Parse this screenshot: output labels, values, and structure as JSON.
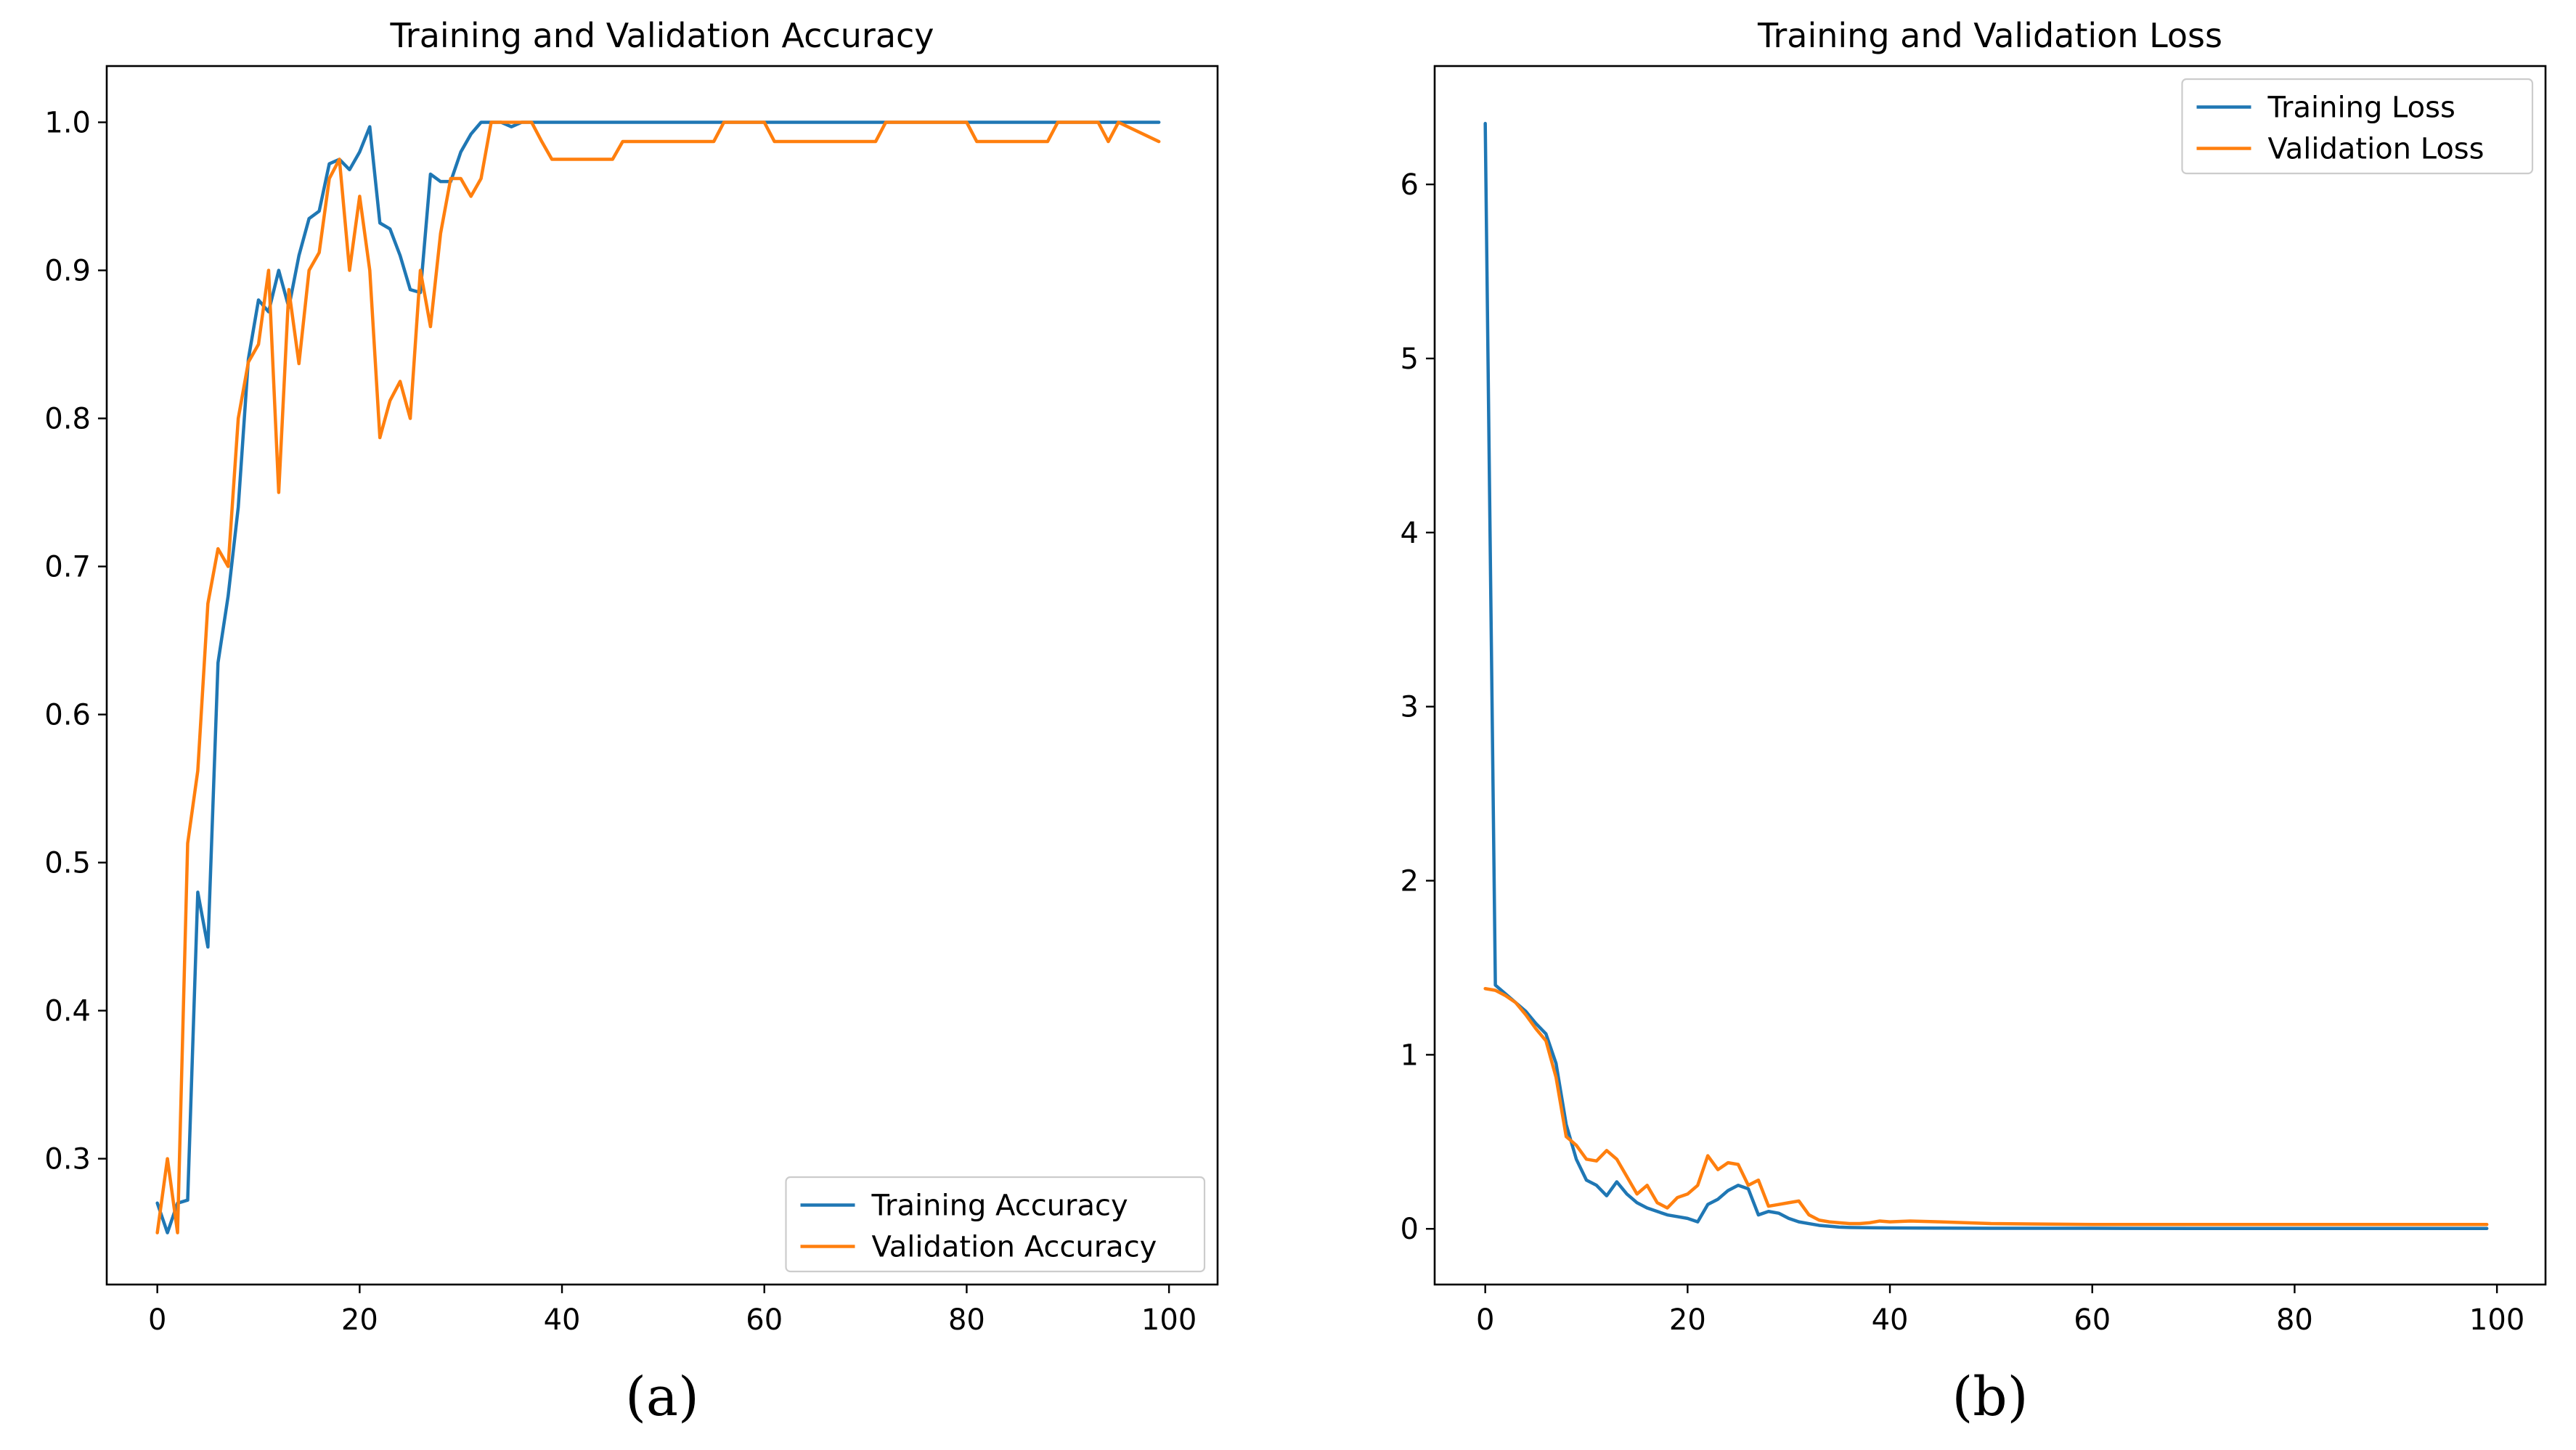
{
  "chart_data": [
    {
      "type": "line",
      "title": "Training and Validation Accuracy",
      "caption": "(a)",
      "xlabel": "",
      "ylabel": "",
      "xlim": [
        -5,
        104.8
      ],
      "ylim": [
        0.215,
        1.038
      ],
      "xticks": [
        0,
        20,
        40,
        60,
        80,
        100
      ],
      "xtick_labels": [
        "0",
        "20",
        "40",
        "60",
        "80",
        "100"
      ],
      "yticks": [
        0.3,
        0.4,
        0.5,
        0.6,
        0.7,
        0.8,
        0.9,
        1.0
      ],
      "ytick_labels": [
        "0.3",
        "0.4",
        "0.5",
        "0.6",
        "0.7",
        "0.8",
        "0.9",
        "1.0"
      ],
      "grid": false,
      "legend_position": "lower-right",
      "series": [
        {
          "name": "Training Accuracy",
          "color": "#1f77b4",
          "x": [
            0,
            1,
            2,
            3,
            4,
            5,
            6,
            7,
            8,
            9,
            10,
            11,
            12,
            13,
            14,
            15,
            16,
            17,
            18,
            19,
            20,
            21,
            22,
            23,
            24,
            25,
            26,
            27,
            28,
            29,
            30,
            31,
            32,
            33,
            34,
            35,
            36,
            37,
            38,
            39,
            40,
            45,
            50,
            55,
            60,
            65,
            70,
            75,
            80,
            85,
            90,
            95,
            99
          ],
          "y": [
            0.27,
            0.25,
            0.27,
            0.272,
            0.48,
            0.443,
            0.635,
            0.68,
            0.74,
            0.84,
            0.88,
            0.872,
            0.9,
            0.875,
            0.91,
            0.935,
            0.94,
            0.972,
            0.975,
            0.968,
            0.98,
            0.997,
            0.932,
            0.928,
            0.91,
            0.887,
            0.885,
            0.965,
            0.96,
            0.96,
            0.98,
            0.992,
            1.0,
            1.0,
            1.0,
            0.997,
            1.0,
            1.0,
            1.0,
            1.0,
            1.0,
            1.0,
            1.0,
            1.0,
            1.0,
            1.0,
            1.0,
            1.0,
            1.0,
            1.0,
            1.0,
            1.0,
            1.0
          ]
        },
        {
          "name": "Validation Accuracy",
          "color": "#ff7f0e",
          "x": [
            0,
            1,
            2,
            3,
            4,
            5,
            6,
            7,
            8,
            9,
            10,
            11,
            12,
            13,
            14,
            15,
            16,
            17,
            18,
            19,
            20,
            21,
            22,
            23,
            24,
            25,
            26,
            27,
            28,
            29,
            30,
            31,
            32,
            33,
            34,
            35,
            36,
            37,
            38,
            39,
            40,
            41,
            45,
            46,
            50,
            55,
            56,
            60,
            61,
            65,
            70,
            71,
            72,
            75,
            80,
            81,
            85,
            88,
            89,
            90,
            93,
            94,
            95,
            99
          ],
          "y": [
            0.25,
            0.3,
            0.25,
            0.513,
            0.562,
            0.675,
            0.712,
            0.7,
            0.8,
            0.838,
            0.85,
            0.9,
            0.75,
            0.887,
            0.837,
            0.9,
            0.912,
            0.962,
            0.975,
            0.9,
            0.95,
            0.9,
            0.787,
            0.812,
            0.825,
            0.8,
            0.9,
            0.862,
            0.925,
            0.962,
            0.962,
            0.95,
            0.962,
            1.0,
            1.0,
            1.0,
            1.0,
            1.0,
            0.987,
            0.975,
            0.975,
            0.975,
            0.975,
            0.987,
            0.987,
            0.987,
            1.0,
            1.0,
            0.987,
            0.987,
            0.987,
            0.987,
            1.0,
            1.0,
            1.0,
            0.987,
            0.987,
            0.987,
            1.0,
            1.0,
            1.0,
            0.987,
            1.0,
            0.987
          ]
        }
      ]
    },
    {
      "type": "line",
      "title": "Training and Validation Loss",
      "caption": "(b)",
      "xlabel": "",
      "ylabel": "",
      "xlim": [
        -5,
        104.8
      ],
      "ylim": [
        -0.32,
        6.68
      ],
      "xticks": [
        0,
        20,
        40,
        60,
        80,
        100
      ],
      "xtick_labels": [
        "0",
        "20",
        "40",
        "60",
        "80",
        "100"
      ],
      "yticks": [
        0,
        1,
        2,
        3,
        4,
        5,
        6
      ],
      "ytick_labels": [
        "0",
        "1",
        "2",
        "3",
        "4",
        "5",
        "6"
      ],
      "grid": false,
      "legend_position": "top-right",
      "series": [
        {
          "name": "Training Loss",
          "color": "#1f77b4",
          "x": [
            0,
            1,
            2,
            3,
            4,
            5,
            6,
            7,
            8,
            9,
            10,
            11,
            12,
            13,
            14,
            15,
            16,
            17,
            18,
            19,
            20,
            21,
            22,
            23,
            24,
            25,
            26,
            27,
            28,
            29,
            30,
            31,
            32,
            33,
            34,
            35,
            36,
            38,
            40,
            45,
            50,
            60,
            70,
            80,
            90,
            99
          ],
          "y": [
            6.35,
            1.4,
            1.35,
            1.3,
            1.25,
            1.18,
            1.12,
            0.95,
            0.6,
            0.4,
            0.28,
            0.25,
            0.19,
            0.27,
            0.2,
            0.15,
            0.12,
            0.1,
            0.08,
            0.07,
            0.06,
            0.04,
            0.14,
            0.17,
            0.22,
            0.25,
            0.23,
            0.08,
            0.1,
            0.09,
            0.06,
            0.04,
            0.03,
            0.02,
            0.015,
            0.01,
            0.008,
            0.006,
            0.005,
            0.004,
            0.003,
            0.003,
            0.002,
            0.002,
            0.002,
            0.002
          ]
        },
        {
          "name": "Validation Loss",
          "color": "#ff7f0e",
          "x": [
            0,
            1,
            2,
            3,
            4,
            5,
            6,
            7,
            8,
            9,
            10,
            11,
            12,
            13,
            14,
            15,
            16,
            17,
            18,
            19,
            20,
            21,
            22,
            23,
            24,
            25,
            26,
            27,
            28,
            29,
            30,
            31,
            32,
            33,
            34,
            35,
            36,
            37,
            38,
            39,
            40,
            42,
            45,
            50,
            60,
            70,
            80,
            90,
            99
          ],
          "y": [
            1.38,
            1.37,
            1.34,
            1.3,
            1.23,
            1.15,
            1.08,
            0.87,
            0.53,
            0.48,
            0.4,
            0.39,
            0.45,
            0.4,
            0.3,
            0.2,
            0.25,
            0.15,
            0.12,
            0.18,
            0.2,
            0.25,
            0.42,
            0.34,
            0.38,
            0.37,
            0.25,
            0.28,
            0.13,
            0.14,
            0.15,
            0.16,
            0.08,
            0.05,
            0.04,
            0.035,
            0.03,
            0.03,
            0.035,
            0.045,
            0.04,
            0.045,
            0.04,
            0.03,
            0.025,
            0.025,
            0.025,
            0.025,
            0.025
          ]
        }
      ]
    }
  ]
}
